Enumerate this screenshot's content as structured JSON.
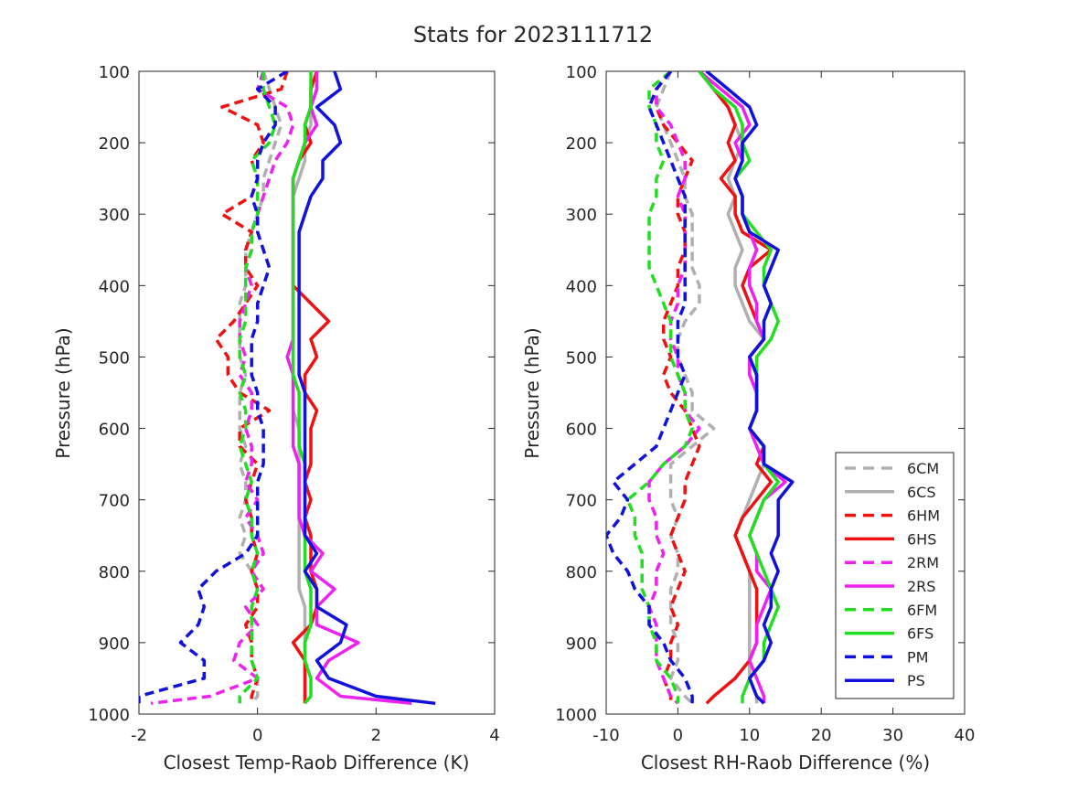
{
  "figure": {
    "title": "Stats for 2023111712"
  },
  "chart_data": [
    {
      "type": "line",
      "xlabel": "Closest Temp-Raob Difference (K)",
      "ylabel": "Pressure (hPa)",
      "xlim": [
        -2,
        4
      ],
      "ylim": [
        1000,
        100
      ],
      "y_reversed": true,
      "xticks": [
        "-2",
        "0",
        "2",
        "4"
      ],
      "yticks": [
        "100",
        "200",
        "300",
        "400",
        "500",
        "600",
        "700",
        "800",
        "900",
        "1000"
      ],
      "grid": false,
      "pressure": [
        100,
        125,
        150,
        175,
        200,
        225,
        250,
        275,
        300,
        325,
        350,
        375,
        400,
        425,
        450,
        475,
        500,
        525,
        550,
        575,
        600,
        625,
        650,
        675,
        700,
        725,
        750,
        775,
        800,
        825,
        850,
        875,
        900,
        925,
        950,
        975,
        985
      ],
      "series": [
        {
          "name": "6CM",
          "values": [
            0.1,
            0.2,
            0.3,
            0.4,
            0.3,
            0.2,
            0.1,
            0.1,
            0.0,
            -0.1,
            -0.2,
            -0.2,
            -0.2,
            -0.3,
            -0.3,
            -0.3,
            -0.3,
            -0.2,
            -0.3,
            -0.3,
            -0.3,
            -0.2,
            -0.3,
            -0.2,
            -0.2,
            -0.3,
            -0.2,
            -0.3,
            -0.1,
            0.0,
            -0.1,
            -0.1,
            -0.1,
            -0.1,
            0.0,
            0.0,
            -0.1
          ]
        },
        {
          "name": "6CS",
          "values": [
            1.0,
            1.0,
            0.9,
            0.9,
            0.8,
            0.8,
            0.7,
            0.6,
            0.6,
            0.6,
            0.6,
            0.6,
            0.6,
            0.6,
            0.6,
            0.6,
            0.6,
            0.6,
            0.6,
            0.6,
            0.7,
            0.7,
            0.7,
            0.7,
            0.7,
            0.7,
            0.7,
            0.7,
            0.7,
            0.7,
            0.8,
            0.8,
            0.8,
            0.8,
            0.8,
            0.8,
            0.8
          ]
        },
        {
          "name": "6HM",
          "values": [
            0.5,
            0.4,
            -0.6,
            0.0,
            0.1,
            -0.1,
            0.0,
            -0.1,
            -0.6,
            -0.1,
            -0.2,
            -0.2,
            0.0,
            -0.2,
            -0.4,
            -0.7,
            -0.5,
            -0.5,
            -0.3,
            0.2,
            -0.3,
            -0.3,
            0.0,
            -0.1,
            -0.2,
            -0.1,
            -0.1,
            0.0,
            -0.1,
            0.0,
            0.0,
            -0.2,
            -0.1,
            -0.1,
            0.0,
            -0.1,
            -0.1
          ]
        },
        {
          "name": "6HS",
          "values": [
            1.0,
            0.9,
            0.9,
            0.8,
            0.9,
            0.7,
            0.6,
            0.6,
            0.6,
            0.6,
            0.6,
            0.6,
            0.6,
            0.9,
            1.2,
            0.9,
            1.0,
            0.8,
            0.8,
            1.0,
            0.9,
            0.9,
            0.9,
            0.8,
            0.9,
            0.8,
            0.9,
            0.9,
            0.9,
            1.0,
            1.0,
            0.9,
            0.6,
            0.8,
            0.8,
            0.8,
            0.8
          ]
        },
        {
          "name": "2RM",
          "values": [
            0.1,
            0.0,
            0.5,
            0.6,
            0.5,
            0.3,
            0.2,
            0.1,
            0.0,
            -0.1,
            -0.1,
            -0.2,
            -0.1,
            -0.2,
            -0.3,
            -0.3,
            -0.2,
            -0.3,
            -0.1,
            -0.1,
            -0.2,
            -0.1,
            -0.1,
            -0.2,
            0.0,
            -0.2,
            0.0,
            0.1,
            -0.1,
            0.1,
            -0.2,
            0.0,
            -0.3,
            -0.4,
            0.0,
            -0.8,
            -1.8
          ]
        },
        {
          "name": "2RS",
          "values": [
            1.0,
            1.0,
            0.9,
            1.0,
            0.8,
            0.7,
            0.6,
            0.6,
            0.6,
            0.6,
            0.6,
            0.6,
            0.6,
            0.6,
            0.6,
            0.6,
            0.5,
            0.6,
            0.6,
            0.6,
            0.6,
            0.6,
            0.7,
            0.7,
            0.7,
            0.7,
            0.8,
            1.1,
            0.9,
            1.3,
            1.0,
            1.0,
            1.7,
            1.2,
            1.0,
            1.4,
            2.6
          ]
        },
        {
          "name": "6FM",
          "values": [
            0.1,
            0.1,
            0.2,
            0.3,
            0.2,
            -0.1,
            0.0,
            0.0,
            0.0,
            -0.1,
            -0.1,
            -0.2,
            -0.2,
            -0.2,
            -0.2,
            -0.3,
            -0.3,
            -0.2,
            -0.3,
            -0.2,
            -0.2,
            -0.3,
            -0.2,
            -0.1,
            -0.2,
            -0.1,
            -0.1,
            0.0,
            -0.1,
            0.0,
            -0.1,
            -0.1,
            -0.1,
            -0.1,
            0.0,
            -0.3,
            -0.3
          ]
        },
        {
          "name": "6FS",
          "values": [
            0.9,
            0.9,
            0.9,
            0.8,
            0.8,
            0.7,
            0.6,
            0.6,
            0.6,
            0.6,
            0.6,
            0.6,
            0.6,
            0.6,
            0.6,
            0.6,
            0.6,
            0.6,
            0.7,
            0.7,
            0.7,
            0.7,
            0.8,
            0.8,
            0.8,
            0.8,
            0.8,
            0.8,
            0.8,
            0.9,
            0.9,
            0.9,
            0.8,
            0.8,
            0.9,
            0.9,
            0.8
          ]
        },
        {
          "name": "PM",
          "values": [
            0.5,
            0.0,
            0.3,
            0.3,
            0.1,
            0.0,
            0.0,
            -0.1,
            0.0,
            0.0,
            0.1,
            0.2,
            0.1,
            0.0,
            0.0,
            -0.1,
            -0.1,
            -0.1,
            0.0,
            0.0,
            0.1,
            0.1,
            0.1,
            0.0,
            0.0,
            0.0,
            0.0,
            -0.2,
            -0.7,
            -1.0,
            -0.9,
            -1.0,
            -1.3,
            -0.9,
            -0.9,
            -2.0,
            -2.0
          ]
        },
        {
          "name": "PS",
          "values": [
            1.3,
            1.4,
            1.0,
            1.3,
            1.4,
            1.1,
            1.1,
            0.9,
            0.8,
            0.7,
            0.7,
            0.7,
            0.7,
            0.7,
            0.7,
            0.7,
            0.7,
            0.7,
            0.8,
            0.8,
            0.8,
            0.8,
            0.8,
            0.8,
            0.8,
            0.8,
            0.8,
            1.0,
            0.8,
            1.0,
            1.0,
            1.5,
            1.4,
            1.0,
            1.2,
            2.0,
            3.0
          ]
        }
      ]
    },
    {
      "type": "line",
      "xlabel": "Closest RH-Raob Difference (%)",
      "ylabel": "Pressure (hPa)",
      "xlim": [
        -10,
        40
      ],
      "ylim": [
        1000,
        100
      ],
      "y_reversed": true,
      "xticks": [
        "-10",
        "0",
        "10",
        "20",
        "30",
        "40"
      ],
      "yticks": [
        "100",
        "200",
        "300",
        "400",
        "500",
        "600",
        "700",
        "800",
        "900",
        "1000"
      ],
      "grid": false,
      "legend": "bottom-right",
      "pressure": [
        100,
        125,
        150,
        175,
        200,
        225,
        250,
        275,
        300,
        325,
        350,
        375,
        400,
        425,
        450,
        475,
        500,
        525,
        550,
        575,
        600,
        625,
        650,
        675,
        700,
        725,
        750,
        775,
        800,
        825,
        850,
        875,
        900,
        925,
        950,
        975,
        985
      ],
      "series": [
        {
          "name": "6CM",
          "values": [
            -1,
            -2,
            -3,
            -2,
            -1,
            0,
            1,
            1,
            2,
            2,
            2,
            2,
            3,
            3,
            1,
            0,
            0,
            1,
            2,
            2,
            5,
            2,
            -1,
            -1,
            -1,
            0,
            -1,
            0,
            0,
            -1,
            -1,
            -1,
            0,
            0,
            -1,
            1,
            2
          ]
        },
        {
          "name": "6CS",
          "values": [
            3,
            5,
            7,
            8,
            9,
            8,
            7,
            8,
            7,
            8,
            9,
            8,
            8,
            9,
            10,
            12,
            10,
            10,
            11,
            11,
            10,
            11,
            12,
            11,
            10,
            9,
            8,
            9,
            10,
            10,
            10,
            10,
            10,
            10,
            10,
            11,
            11
          ]
        },
        {
          "name": "6HM",
          "values": [
            -1,
            -3,
            -3,
            -2,
            0,
            2,
            1,
            0,
            0,
            1,
            1,
            0,
            0,
            -1,
            -2,
            -2,
            -1,
            -2,
            -1,
            1,
            2,
            3,
            2,
            1,
            1,
            0,
            -1,
            0,
            1,
            0,
            -1,
            0,
            -1,
            -1,
            -2,
            -1,
            -1
          ]
        },
        {
          "name": "6HS",
          "values": [
            3,
            5,
            7,
            8,
            7,
            8,
            6,
            8,
            8,
            9,
            13,
            10,
            9,
            10,
            11,
            12,
            10,
            11,
            11,
            11,
            10,
            12,
            11,
            13,
            11,
            9,
            8,
            9,
            10,
            11,
            11,
            11,
            11,
            10,
            8,
            5,
            4
          ]
        },
        {
          "name": "2RM",
          "values": [
            -1,
            -3,
            -3,
            -1,
            0,
            1,
            1,
            0,
            1,
            1,
            1,
            1,
            0,
            0,
            -1,
            -1,
            0,
            0,
            1,
            1,
            3,
            1,
            -2,
            -4,
            -4,
            -3,
            -3,
            -2,
            -3,
            -3,
            -4,
            -3,
            -3,
            -3,
            -2,
            -1,
            0
          ]
        },
        {
          "name": "2RS",
          "values": [
            3,
            6,
            9,
            10,
            8,
            9,
            8,
            9,
            9,
            10,
            11,
            10,
            10,
            11,
            11,
            12,
            10,
            10,
            11,
            11,
            10,
            11,
            12,
            15,
            12,
            11,
            10,
            11,
            11,
            13,
            12,
            11,
            11,
            10,
            11,
            12,
            12
          ]
        },
        {
          "name": "6FM",
          "values": [
            -1,
            -4,
            -4,
            -3,
            -3,
            -2,
            -3,
            -3,
            -4,
            -4,
            -4,
            -4,
            -3,
            -2,
            -1,
            -1,
            -1,
            0,
            1,
            1,
            2,
            1,
            -2,
            -4,
            -7,
            -6,
            -6,
            -5,
            -5,
            -5,
            -4,
            -4,
            -3,
            -3,
            -1,
            0,
            0
          ]
        },
        {
          "name": "6FS",
          "values": [
            3,
            5,
            8,
            9,
            9,
            10,
            8,
            9,
            9,
            11,
            13,
            12,
            12,
            13,
            14,
            13,
            11,
            11,
            11,
            11,
            10,
            12,
            12,
            14,
            12,
            11,
            10,
            11,
            12,
            13,
            14,
            13,
            12,
            12,
            10,
            9,
            9
          ]
        },
        {
          "name": "PM",
          "values": [
            -1,
            -3,
            -4,
            -3,
            -2,
            -1,
            0,
            1,
            1,
            1,
            1,
            1,
            1,
            1,
            0,
            0,
            0,
            1,
            0,
            -1,
            -2,
            -3,
            -6,
            -9,
            -7,
            -8,
            -10,
            -9,
            -7,
            -6,
            -4,
            -4,
            -2,
            -1,
            1,
            2,
            2
          ]
        },
        {
          "name": "PS",
          "values": [
            4,
            7,
            10,
            11,
            9,
            9,
            8,
            9,
            9,
            10,
            14,
            13,
            12,
            13,
            12,
            12,
            10,
            11,
            11,
            11,
            10,
            12,
            12,
            16,
            14,
            14,
            14,
            13,
            14,
            13,
            13,
            12,
            13,
            12,
            10,
            11,
            12
          ]
        }
      ]
    }
  ],
  "legend_items": [
    {
      "name": "6CM",
      "color": "#b0b0b0",
      "dashed": true
    },
    {
      "name": "6CS",
      "color": "#b0b0b0",
      "dashed": false
    },
    {
      "name": "6HM",
      "color": "#ee1111",
      "dashed": true
    },
    {
      "name": "6HS",
      "color": "#ee1111",
      "dashed": false
    },
    {
      "name": "2RM",
      "color": "#ee22ee",
      "dashed": true
    },
    {
      "name": "2RS",
      "color": "#ee22ee",
      "dashed": false
    },
    {
      "name": "6FM",
      "color": "#22dd22",
      "dashed": true
    },
    {
      "name": "6FS",
      "color": "#22dd22",
      "dashed": false
    },
    {
      "name": "PM",
      "color": "#1111dd",
      "dashed": true
    },
    {
      "name": "PS",
      "color": "#1111dd",
      "dashed": false
    }
  ]
}
